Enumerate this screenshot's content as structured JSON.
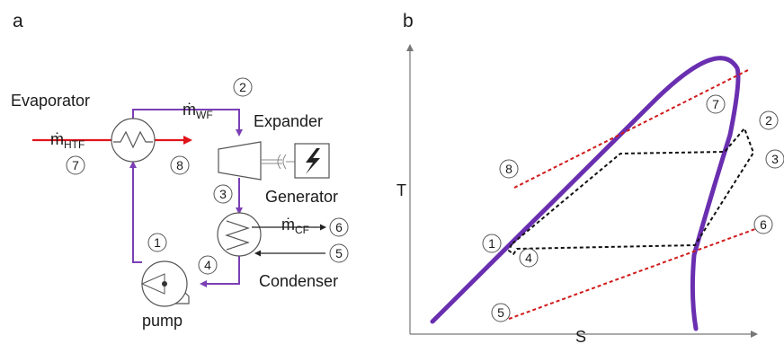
{
  "panels": {
    "a": "a",
    "b": "b"
  },
  "schematic": {
    "evaporator": "Evaporator",
    "expander": "Expander",
    "generator": "Generator",
    "condenser": "Condenser",
    "pump": "pump",
    "m_htf": {
      "base": "ṁ",
      "sub": "HTF"
    },
    "m_wf": {
      "base": "ṁ",
      "sub": "WF"
    },
    "m_cf": {
      "base": "ṁ",
      "sub": "CF"
    },
    "states": {
      "s1": "1",
      "s2": "2",
      "s3": "3",
      "s4": "4",
      "s5": "5",
      "s6": "6",
      "s7": "7",
      "s8": "8"
    },
    "colors": {
      "working_fluid": "#7b3fb5",
      "heat_transfer_fluid": "#e0141b"
    }
  },
  "ts_diagram": {
    "y_axis": "T",
    "x_axis": "S",
    "states": {
      "s1": "1",
      "s2": "2",
      "s3": "3",
      "s4": "4",
      "s5": "5",
      "s6": "6",
      "s7": "7",
      "s8": "8"
    },
    "colors": {
      "saturation_dome": "#6a2fb0",
      "cycle": "#111111",
      "source_sink_lines": "#d11a1a"
    }
  }
}
